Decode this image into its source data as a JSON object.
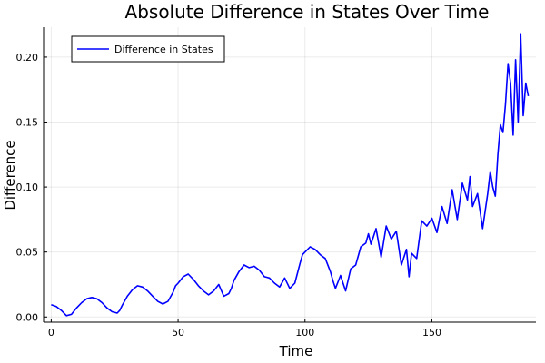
{
  "chart_data": {
    "type": "line",
    "title": "Absolute Difference in States Over Time",
    "xlabel": "Time",
    "ylabel": "Difference",
    "xlim": [
      -3,
      191
    ],
    "ylim": [
      -0.004,
      0.223
    ],
    "xticks": [
      0,
      50,
      100,
      150
    ],
    "xtick_labels": [
      "0",
      "50",
      "100",
      "150"
    ],
    "yticks": [
      0.0,
      0.05,
      0.1,
      0.15,
      0.2
    ],
    "ytick_labels": [
      "0.00",
      "0.05",
      "0.10",
      "0.15",
      "0.20"
    ],
    "grid": true,
    "legend_position": "top-left",
    "series": [
      {
        "name": "Difference in States",
        "color": "#0000ff",
        "x": [
          0,
          2,
          4,
          6,
          8,
          10,
          12,
          14,
          16,
          18,
          20,
          22,
          24,
          26,
          27,
          28,
          30,
          32,
          34,
          36,
          38,
          40,
          42,
          44,
          46,
          48,
          49,
          50,
          52,
          54,
          56,
          58,
          60,
          62,
          64,
          66,
          68,
          70,
          71,
          72,
          74,
          76,
          78,
          80,
          82,
          84,
          86,
          88,
          90,
          92,
          94,
          96,
          98,
          99,
          100,
          102,
          104,
          106,
          108,
          110,
          111,
          112,
          114,
          116,
          118,
          120,
          122,
          124,
          125,
          126,
          128,
          130,
          132,
          134,
          136,
          138,
          140,
          141,
          142,
          144,
          146,
          148,
          150,
          152,
          154,
          156,
          158,
          160,
          162,
          164,
          165,
          166,
          168,
          170,
          172,
          173,
          174,
          175,
          176,
          177,
          178,
          179,
          180,
          181,
          182,
          183,
          184,
          185,
          186,
          187,
          188
        ],
        "y": [
          0.0095,
          0.008,
          0.005,
          0.001,
          0.002,
          0.007,
          0.011,
          0.014,
          0.015,
          0.014,
          0.011,
          0.007,
          0.004,
          0.003,
          0.005,
          0.009,
          0.016,
          0.021,
          0.024,
          0.023,
          0.02,
          0.016,
          0.012,
          0.01,
          0.012,
          0.019,
          0.024,
          0.026,
          0.031,
          0.033,
          0.029,
          0.024,
          0.02,
          0.017,
          0.02,
          0.025,
          0.016,
          0.018,
          0.022,
          0.028,
          0.035,
          0.04,
          0.038,
          0.039,
          0.036,
          0.031,
          0.03,
          0.026,
          0.023,
          0.03,
          0.022,
          0.026,
          0.041,
          0.048,
          0.05,
          0.054,
          0.052,
          0.048,
          0.045,
          0.035,
          0.028,
          0.022,
          0.032,
          0.02,
          0.037,
          0.04,
          0.054,
          0.057,
          0.064,
          0.056,
          0.068,
          0.046,
          0.07,
          0.06,
          0.066,
          0.04,
          0.052,
          0.031,
          0.049,
          0.045,
          0.074,
          0.07,
          0.076,
          0.065,
          0.085,
          0.072,
          0.098,
          0.075,
          0.103,
          0.09,
          0.108,
          0.085,
          0.095,
          0.068,
          0.095,
          0.112,
          0.1,
          0.093,
          0.125,
          0.148,
          0.142,
          0.164,
          0.195,
          0.18,
          0.14,
          0.198,
          0.15,
          0.218,
          0.155,
          0.18,
          0.17
        ]
      }
    ]
  }
}
